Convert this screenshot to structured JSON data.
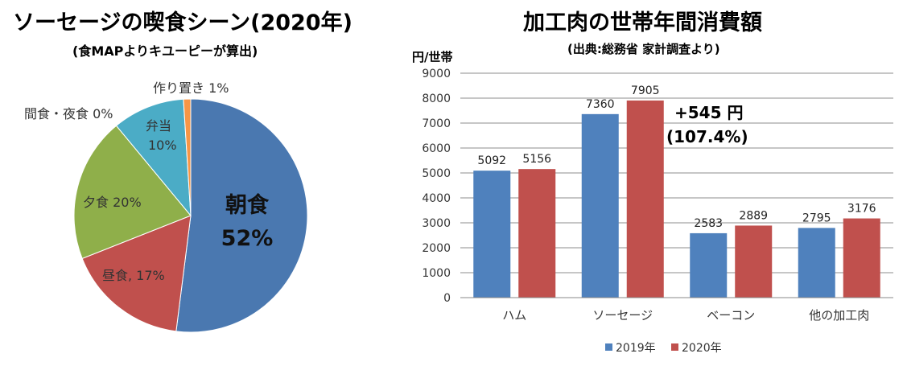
{
  "pie": {
    "title": "ソーセージの喫食シーン(2020年)",
    "subtitle": "(食MAPよりキユーピーが算出)",
    "main_label_line1": "朝食",
    "main_label_line2": "52%",
    "labels": {
      "lunch": "昼食, 17%",
      "dinner": "夕食 20%",
      "bento_line1": "弁当",
      "bento_line2": "10%",
      "snack": "間食・夜食 0%",
      "premade": "作り置き 1%"
    }
  },
  "bar": {
    "title": "加工肉の世帯年間消費額",
    "subtitle": "(出典:総務省 家計調査より)",
    "unit": "円/世帯",
    "annotation_line1": "+545 円",
    "annotation_line2": "(107.4%)"
  },
  "colors": {
    "blue": "#4f81bd",
    "red": "#c0504d",
    "green": "#8faf4a",
    "teal": "#4bacc6",
    "orange": "#f79646",
    "pie_main": "#4a78b0"
  },
  "chart_data": [
    {
      "type": "pie",
      "title": "ソーセージの喫食シーン(2020年)",
      "subtitle": "(食MAPよりキユーピーが算出)",
      "slices": [
        {
          "label": "朝食",
          "value": 52
        },
        {
          "label": "昼食",
          "value": 17
        },
        {
          "label": "夕食",
          "value": 20
        },
        {
          "label": "間食・夜食",
          "value": 0
        },
        {
          "label": "弁当",
          "value": 10
        },
        {
          "label": "作り置き",
          "value": 1
        }
      ]
    },
    {
      "type": "bar",
      "title": "加工肉の世帯年間消費額",
      "subtitle": "(出典:総務省 家計調査より)",
      "ylabel": "円/世帯",
      "ylim": [
        0,
        9000
      ],
      "yticks": [
        0,
        1000,
        2000,
        3000,
        4000,
        5000,
        6000,
        7000,
        8000,
        9000
      ],
      "grid": true,
      "legend_position": "bottom",
      "categories": [
        "ハム",
        "ソーセージ",
        "ベーコン",
        "他の加工肉"
      ],
      "series": [
        {
          "name": "2019年",
          "values": [
            5092,
            7360,
            2583,
            2795
          ]
        },
        {
          "name": "2020年",
          "values": [
            5156,
            7905,
            2889,
            3176
          ]
        }
      ]
    }
  ]
}
